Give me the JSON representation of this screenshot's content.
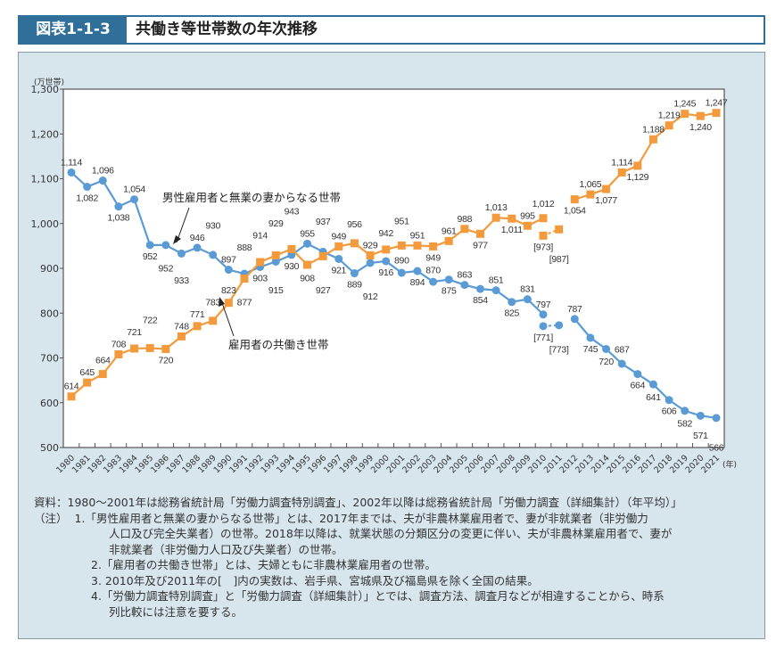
{
  "header": {
    "figure_no": "図表1-1-3",
    "title": "共働き等世帯数の年次推移"
  },
  "chart_data": {
    "type": "line",
    "ylabel": "(万世帯)",
    "xlabel": "(年)",
    "ylim": [
      500,
      1300
    ],
    "yticks": [
      "500",
      "600",
      "700",
      "800",
      "900",
      "1,000",
      "1,100",
      "1,200",
      "1,300"
    ],
    "x": [
      1980,
      1981,
      1982,
      1983,
      1984,
      1985,
      1986,
      1987,
      1988,
      1989,
      1990,
      1991,
      1992,
      1993,
      1994,
      1995,
      1996,
      1997,
      1998,
      1999,
      2000,
      2001,
      2002,
      2003,
      2004,
      2005,
      2006,
      2007,
      2008,
      2009,
      2010,
      2011,
      2012,
      2013,
      2014,
      2015,
      2016,
      2017,
      2018,
      2019,
      2020,
      2021
    ],
    "series": [
      {
        "name": "男性雇用者と無業の妻からなる世帯",
        "color": "#5b9bd5",
        "marker": "circle",
        "values": [
          1114,
          1082,
          1096,
          1038,
          1054,
          952,
          952,
          933,
          946,
          930,
          897,
          888,
          903,
          915,
          930,
          955,
          937,
          921,
          889,
          912,
          916,
          890,
          894,
          870,
          875,
          863,
          854,
          851,
          825,
          831,
          797,
          null,
          787,
          745,
          720,
          687,
          664,
          641,
          606,
          582,
          571,
          566
        ],
        "bracketed": {
          "x": [
            2010,
            2011
          ],
          "values": [
            771,
            773
          ]
        }
      },
      {
        "name": "雇用者の共働き世帯",
        "color": "#f39a3c",
        "marker": "square",
        "values": [
          614,
          645,
          664,
          708,
          721,
          722,
          720,
          748,
          771,
          783,
          823,
          877,
          914,
          929,
          943,
          908,
          927,
          949,
          956,
          929,
          942,
          951,
          951,
          949,
          961,
          988,
          977,
          1013,
          1011,
          995,
          1012,
          null,
          1054,
          1065,
          1077,
          1114,
          1129,
          1188,
          1219,
          1245,
          1240,
          1247
        ],
        "bracketed": {
          "x": [
            2010,
            2011
          ],
          "values": [
            973,
            987
          ]
        }
      }
    ],
    "grid": false
  },
  "notes": {
    "source": "資料：1980～2001年は総務省統計局「労働力調査特別調査」、2002年以降は総務省統計局「労働力調査（詳細集計）（年平均）」",
    "note_label": "（注）",
    "n1a": "1.「男性雇用者と無業の妻からなる世帯」とは、2017年までは、夫が非農林業雇用者で、妻が非就業者（非労働力",
    "n1b": "人口及び完全失業者）の世帯。2018年以降は、就業状態の分類区分の変更に伴い、夫が非農林業雇用者で、妻が",
    "n1c": "非就業者（非労働力人口及び失業者）の世帯。",
    "n2": "2.「雇用者の共働き世帯」とは、夫婦ともに非農林業雇用者の世帯。",
    "n3": "3. 2010年及び2011年の[　]内の実数は、岩手県、宮城県及び福島県を除く全国の結果。",
    "n4a": "4.「労働力調査特別調査」と「労働力調査（詳細集計）」とでは、調査方法、調査月などが相違することから、時系",
    "n4b": "列比較には注意を要する。"
  }
}
